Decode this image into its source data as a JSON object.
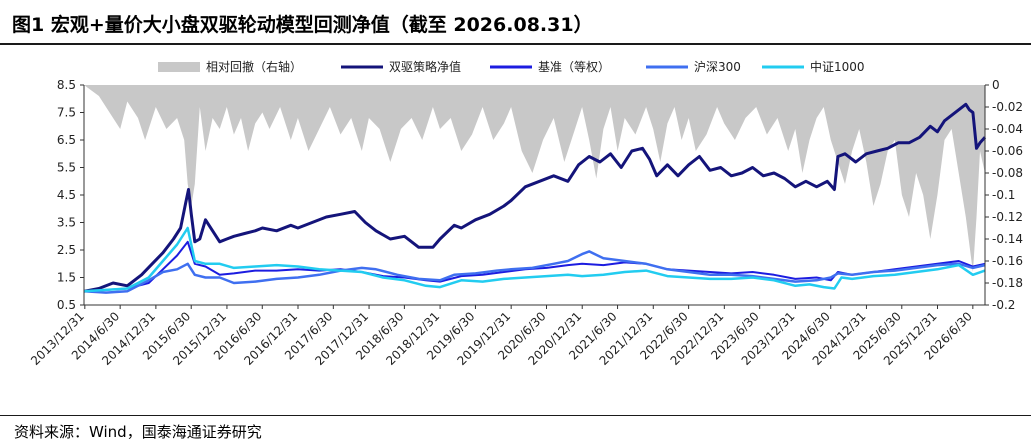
{
  "title": "图1 宏观+量价大小盘双驱轮动模型回测净值（截至 2026.08.31）",
  "source": "资料来源：Wind，国泰海通证券研究",
  "colors": {
    "drawdown": "#c8c8c8",
    "strategy": "#14147a",
    "benchmark": "#1c1ce0",
    "hs300": "#3f6ff0",
    "zz1000": "#22ccf0"
  },
  "chart_data": {
    "type": "line",
    "legend_position": "top",
    "grid": false,
    "x_ticks": [
      "2013/12/31",
      "2014/6/30",
      "2014/12/31",
      "2015/6/30",
      "2015/12/31",
      "2016/6/30",
      "2016/12/31",
      "2017/6/30",
      "2017/12/31",
      "2018/6/30",
      "2018/12/31",
      "2019/6/30",
      "2019/12/31",
      "2020/6/30",
      "2020/12/31",
      "2021/6/30",
      "2021/12/31",
      "2022/6/30",
      "2022/12/31",
      "2023/6/30",
      "2023/12/31",
      "2024/6/30",
      "2024/12/31",
      "2025/6/30",
      "2025/12/31",
      "2026/6/30"
    ],
    "y_left": {
      "min": 0.5,
      "max": 8.5,
      "ticks": [
        "0.5",
        "1.5",
        "2.5",
        "3.5",
        "4.5",
        "5.5",
        "6.5",
        "7.5",
        "8.5"
      ]
    },
    "y_right": {
      "min": -0.2,
      "max": 0,
      "ticks": [
        "0",
        "-0.02",
        "-0.04",
        "-0.06",
        "-0.08",
        "-0.1",
        "-0.12",
        "-0.14",
        "-0.16",
        "-0.18",
        "-0.2"
      ]
    },
    "series": [
      {
        "name": "相对回撤（右轴）",
        "kind": "area",
        "axis": "right",
        "color_key": "drawdown",
        "x": [
          2013.99,
          2014.2,
          2014.4,
          2014.5,
          2014.6,
          2014.75,
          2014.85,
          2015.0,
          2015.15,
          2015.3,
          2015.4,
          2015.45,
          2015.5,
          2015.55,
          2015.62,
          2015.7,
          2015.8,
          2015.9,
          2016.0,
          2016.1,
          2016.2,
          2016.3,
          2016.4,
          2016.5,
          2016.6,
          2016.75,
          2016.9,
          2017.0,
          2017.15,
          2017.3,
          2017.45,
          2017.6,
          2017.75,
          2017.9,
          2018.0,
          2018.15,
          2018.3,
          2018.45,
          2018.6,
          2018.75,
          2018.9,
          2019.0,
          2019.15,
          2019.3,
          2019.45,
          2019.6,
          2019.75,
          2019.9,
          2020.0,
          2020.15,
          2020.3,
          2020.45,
          2020.6,
          2020.75,
          2020.9,
          2021.0,
          2021.1,
          2021.2,
          2021.3,
          2021.4,
          2021.5,
          2021.6,
          2021.75,
          2021.9,
          2022.0,
          2022.1,
          2022.2,
          2022.3,
          2022.4,
          2022.5,
          2022.6,
          2022.75,
          2022.9,
          2023.0,
          2023.15,
          2023.3,
          2023.45,
          2023.6,
          2023.75,
          2023.9,
          2024.0,
          2024.1,
          2024.2,
          2024.3,
          2024.4,
          2024.5,
          2024.6,
          2024.7,
          2024.8,
          2024.9,
          2025.0,
          2025.1,
          2025.2,
          2025.3,
          2025.4,
          2025.5,
          2025.6,
          2025.7,
          2025.8,
          2025.9,
          2026.0,
          2026.1,
          2026.2,
          2026.3,
          2026.4,
          2026.5,
          2026.55,
          2026.6,
          2026.67
        ],
        "values": [
          0,
          -0.01,
          -0.03,
          -0.04,
          -0.015,
          -0.03,
          -0.05,
          -0.02,
          -0.04,
          -0.03,
          -0.05,
          -0.09,
          -0.11,
          -0.09,
          -0.02,
          -0.06,
          -0.03,
          -0.04,
          -0.02,
          -0.045,
          -0.03,
          -0.06,
          -0.035,
          -0.025,
          -0.04,
          -0.02,
          -0.05,
          -0.03,
          -0.06,
          -0.04,
          -0.02,
          -0.045,
          -0.03,
          -0.06,
          -0.03,
          -0.04,
          -0.07,
          -0.04,
          -0.03,
          -0.05,
          -0.02,
          -0.04,
          -0.03,
          -0.06,
          -0.045,
          -0.02,
          -0.05,
          -0.035,
          -0.02,
          -0.06,
          -0.08,
          -0.05,
          -0.03,
          -0.07,
          -0.04,
          -0.02,
          -0.05,
          -0.085,
          -0.04,
          -0.02,
          -0.06,
          -0.03,
          -0.045,
          -0.02,
          -0.04,
          -0.07,
          -0.035,
          -0.02,
          -0.05,
          -0.03,
          -0.06,
          -0.045,
          -0.02,
          -0.035,
          -0.05,
          -0.03,
          -0.02,
          -0.045,
          -0.03,
          -0.06,
          -0.04,
          -0.08,
          -0.05,
          -0.03,
          -0.02,
          -0.05,
          -0.07,
          -0.09,
          -0.06,
          -0.04,
          -0.07,
          -0.11,
          -0.09,
          -0.06,
          -0.05,
          -0.1,
          -0.12,
          -0.08,
          -0.1,
          -0.14,
          -0.1,
          -0.05,
          -0.04,
          -0.08,
          -0.12,
          -0.17,
          -0.12,
          -0.06,
          -0.08
        ]
      },
      {
        "name": "双驱策略净值",
        "kind": "line",
        "axis": "left",
        "color_key": "strategy",
        "width": 3,
        "x": [
          2013.99,
          2014.2,
          2014.4,
          2014.6,
          2014.8,
          2014.95,
          2015.1,
          2015.25,
          2015.35,
          2015.42,
          2015.46,
          2015.5,
          2015.55,
          2015.62,
          2015.7,
          2015.8,
          2015.9,
          2016.0,
          2016.1,
          2016.25,
          2016.4,
          2016.5,
          2016.7,
          2016.9,
          2017.0,
          2017.2,
          2017.4,
          2017.6,
          2017.8,
          2017.95,
          2018.1,
          2018.3,
          2018.5,
          2018.7,
          2018.9,
          2019.0,
          2019.2,
          2019.3,
          2019.5,
          2019.7,
          2019.9,
          2020.0,
          2020.2,
          2020.4,
          2020.6,
          2020.8,
          2020.95,
          2021.1,
          2021.25,
          2021.4,
          2021.55,
          2021.7,
          2021.85,
          2021.95,
          2022.05,
          2022.2,
          2022.35,
          2022.5,
          2022.65,
          2022.8,
          2022.95,
          2023.1,
          2023.25,
          2023.4,
          2023.55,
          2023.7,
          2023.85,
          2024.0,
          2024.15,
          2024.3,
          2024.45,
          2024.55,
          2024.6,
          2024.7,
          2024.85,
          2025.0,
          2025.15,
          2025.3,
          2025.45,
          2025.6,
          2025.75,
          2025.9,
          2026.0,
          2026.1,
          2026.2,
          2026.3,
          2026.4,
          2026.45,
          2026.5,
          2026.55,
          2026.6,
          2026.67
        ],
        "values": [
          1.0,
          1.1,
          1.3,
          1.2,
          1.6,
          2.0,
          2.4,
          2.9,
          3.3,
          4.2,
          4.7,
          3.8,
          2.8,
          2.9,
          3.6,
          3.2,
          2.8,
          2.9,
          3.0,
          3.1,
          3.2,
          3.3,
          3.2,
          3.4,
          3.3,
          3.5,
          3.7,
          3.8,
          3.9,
          3.5,
          3.2,
          2.9,
          3.0,
          2.6,
          2.6,
          2.9,
          3.4,
          3.3,
          3.6,
          3.8,
          4.1,
          4.3,
          4.8,
          5.0,
          5.2,
          5.0,
          5.6,
          5.9,
          5.7,
          6.0,
          5.5,
          6.1,
          6.2,
          5.8,
          5.2,
          5.6,
          5.2,
          5.6,
          5.9,
          5.4,
          5.5,
          5.2,
          5.3,
          5.5,
          5.2,
          5.3,
          5.1,
          4.8,
          5.0,
          4.8,
          5.0,
          4.7,
          5.9,
          6.0,
          5.7,
          6.0,
          6.1,
          6.2,
          6.4,
          6.4,
          6.6,
          7.0,
          6.8,
          7.2,
          7.4,
          7.6,
          7.8,
          7.6,
          7.5,
          6.2,
          6.4,
          6.6
        ]
      },
      {
        "name": "基准（等权）",
        "kind": "line",
        "axis": "left",
        "color_key": "benchmark",
        "width": 2,
        "x": [
          2013.99,
          2014.3,
          2014.6,
          2014.9,
          2015.1,
          2015.3,
          2015.45,
          2015.55,
          2015.7,
          2015.9,
          2016.1,
          2016.4,
          2016.7,
          2017.0,
          2017.3,
          2017.6,
          2017.9,
          2018.2,
          2018.5,
          2018.8,
          2019.0,
          2019.3,
          2019.6,
          2019.9,
          2020.2,
          2020.5,
          2020.8,
          2021.0,
          2021.3,
          2021.6,
          2021.9,
          2022.2,
          2022.5,
          2022.8,
          2023.1,
          2023.4,
          2023.7,
          2024.0,
          2024.3,
          2024.5,
          2024.6,
          2024.8,
          2025.1,
          2025.4,
          2025.7,
          2026.0,
          2026.3,
          2026.5,
          2026.67
        ],
        "values": [
          1.0,
          1.05,
          1.1,
          1.3,
          1.8,
          2.3,
          2.8,
          2.0,
          1.9,
          1.6,
          1.65,
          1.75,
          1.75,
          1.8,
          1.75,
          1.8,
          1.7,
          1.55,
          1.5,
          1.4,
          1.35,
          1.55,
          1.6,
          1.7,
          1.8,
          1.85,
          1.95,
          2.0,
          1.95,
          2.05,
          2.0,
          1.8,
          1.75,
          1.7,
          1.65,
          1.7,
          1.6,
          1.45,
          1.5,
          1.4,
          1.7,
          1.6,
          1.7,
          1.8,
          1.9,
          2.0,
          2.1,
          1.9,
          2.0
        ]
      },
      {
        "name": "沪深300",
        "kind": "line",
        "axis": "left",
        "color_key": "hs300",
        "width": 2.5,
        "x": [
          2013.99,
          2014.3,
          2014.6,
          2014.9,
          2015.1,
          2015.3,
          2015.45,
          2015.55,
          2015.7,
          2015.9,
          2016.1,
          2016.4,
          2016.7,
          2017.0,
          2017.3,
          2017.6,
          2017.9,
          2018.1,
          2018.4,
          2018.7,
          2019.0,
          2019.2,
          2019.5,
          2019.8,
          2020.0,
          2020.3,
          2020.6,
          2020.8,
          2021.0,
          2021.1,
          2021.3,
          2021.6,
          2021.9,
          2022.2,
          2022.5,
          2022.8,
          2023.1,
          2023.4,
          2023.7,
          2024.0,
          2024.3,
          2024.5,
          2024.6,
          2024.8,
          2025.1,
          2025.4,
          2025.7,
          2026.0,
          2026.3,
          2026.5,
          2026.67
        ],
        "values": [
          1.0,
          0.95,
          1.0,
          1.4,
          1.7,
          1.8,
          2.0,
          1.6,
          1.5,
          1.5,
          1.3,
          1.35,
          1.45,
          1.5,
          1.6,
          1.75,
          1.85,
          1.8,
          1.6,
          1.45,
          1.4,
          1.6,
          1.65,
          1.75,
          1.8,
          1.85,
          2.0,
          2.1,
          2.35,
          2.45,
          2.2,
          2.1,
          2.0,
          1.8,
          1.7,
          1.6,
          1.6,
          1.55,
          1.45,
          1.35,
          1.4,
          1.5,
          1.65,
          1.6,
          1.7,
          1.75,
          1.85,
          1.95,
          2.0,
          1.85,
          1.95
        ]
      },
      {
        "name": "中证1000",
        "kind": "line",
        "axis": "left",
        "color_key": "zz1000",
        "width": 2.5,
        "x": [
          2013.99,
          2014.3,
          2014.6,
          2014.9,
          2015.1,
          2015.3,
          2015.45,
          2015.55,
          2015.7,
          2015.9,
          2016.1,
          2016.4,
          2016.7,
          2017.0,
          2017.3,
          2017.6,
          2017.9,
          2018.2,
          2018.5,
          2018.8,
          2019.0,
          2019.3,
          2019.6,
          2019.9,
          2020.2,
          2020.5,
          2020.8,
          2021.0,
          2021.3,
          2021.6,
          2021.9,
          2022.2,
          2022.5,
          2022.8,
          2023.1,
          2023.4,
          2023.7,
          2024.0,
          2024.2,
          2024.4,
          2024.55,
          2024.65,
          2024.8,
          2025.1,
          2025.4,
          2025.7,
          2026.0,
          2026.3,
          2026.5,
          2026.67
        ],
        "values": [
          1.0,
          1.05,
          1.1,
          1.5,
          2.1,
          2.7,
          3.3,
          2.1,
          2.0,
          2.0,
          1.85,
          1.9,
          1.95,
          1.9,
          1.8,
          1.75,
          1.7,
          1.5,
          1.4,
          1.2,
          1.15,
          1.4,
          1.35,
          1.45,
          1.5,
          1.55,
          1.6,
          1.55,
          1.6,
          1.7,
          1.75,
          1.55,
          1.5,
          1.45,
          1.45,
          1.5,
          1.4,
          1.2,
          1.25,
          1.15,
          1.1,
          1.5,
          1.45,
          1.55,
          1.6,
          1.7,
          1.8,
          1.95,
          1.6,
          1.75
        ]
      }
    ]
  }
}
